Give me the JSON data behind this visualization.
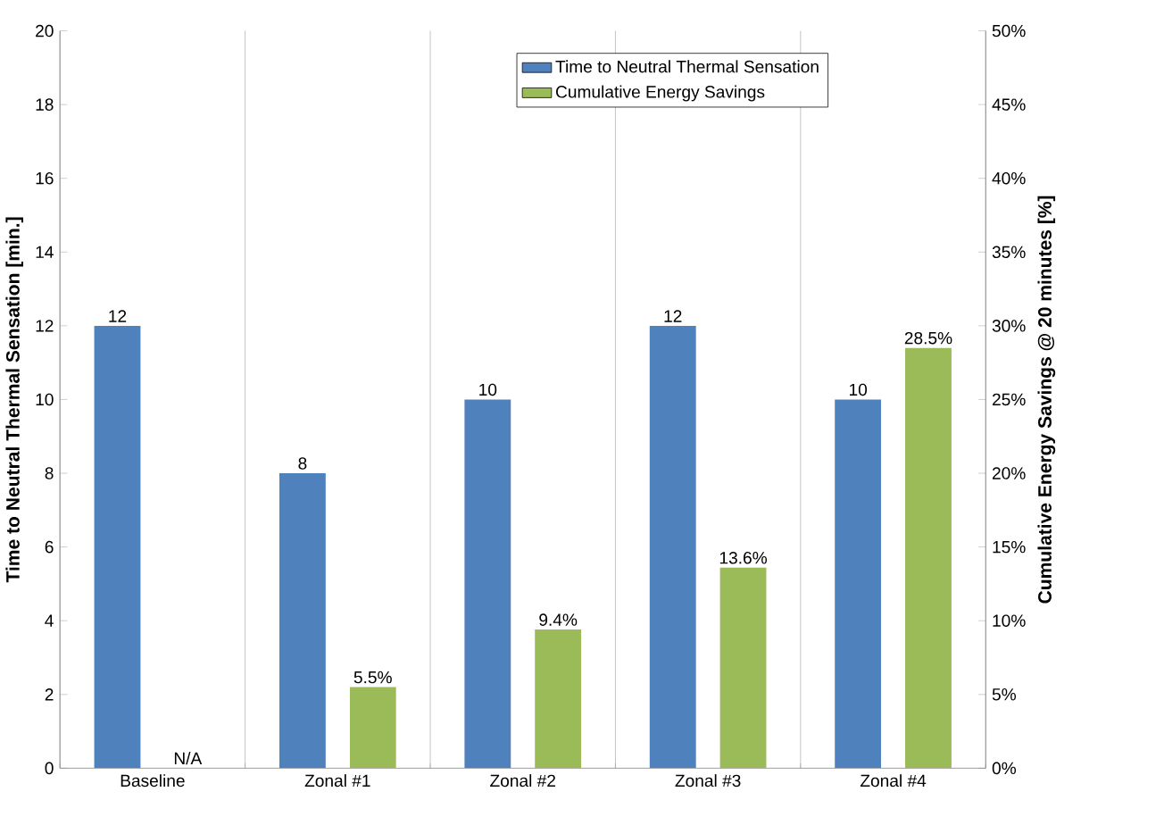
{
  "chart_data": {
    "type": "bar",
    "categories": [
      "Baseline",
      "Zonal #1",
      "Zonal #2",
      "Zonal #3",
      "Zonal #4"
    ],
    "ylabel": "Time to Neutral Thermal Sensation [min.]",
    "y2label": "Cumulative Energy Savings @ 20 minutes [%]",
    "ylim": [
      0,
      20
    ],
    "yticks": [
      0,
      2,
      4,
      6,
      8,
      10,
      12,
      14,
      16,
      18,
      20
    ],
    "y2lim": [
      0,
      50
    ],
    "y2ticks": [
      {
        "value": 0,
        "label": "0%"
      },
      {
        "value": 5,
        "label": "5%"
      },
      {
        "value": 10,
        "label": "10%"
      },
      {
        "value": 15,
        "label": "15%"
      },
      {
        "value": 20,
        "label": "20%"
      },
      {
        "value": 25,
        "label": "25%"
      },
      {
        "value": 30,
        "label": "30%"
      },
      {
        "value": 35,
        "label": "35%"
      },
      {
        "value": 40,
        "label": "40%"
      },
      {
        "value": 45,
        "label": "45%"
      },
      {
        "value": 50,
        "label": "50%"
      }
    ],
    "series": [
      {
        "name": "Time to Neutral Thermal Sensation",
        "color": "#4f81bd",
        "values": [
          12,
          8,
          10,
          12,
          10
        ],
        "value_labels": [
          "12",
          "8",
          "10",
          "12",
          "10"
        ]
      },
      {
        "name": "Cumulative Energy Savings",
        "color": "#9bbb59",
        "axis": "y2",
        "values": [
          null,
          5.5,
          9.4,
          13.6,
          28.5
        ],
        "value_labels": [
          "N/A",
          "5.5%",
          "9.4%",
          "13.6%",
          "28.5%"
        ]
      }
    ],
    "grid": "x",
    "legend": "top right"
  }
}
